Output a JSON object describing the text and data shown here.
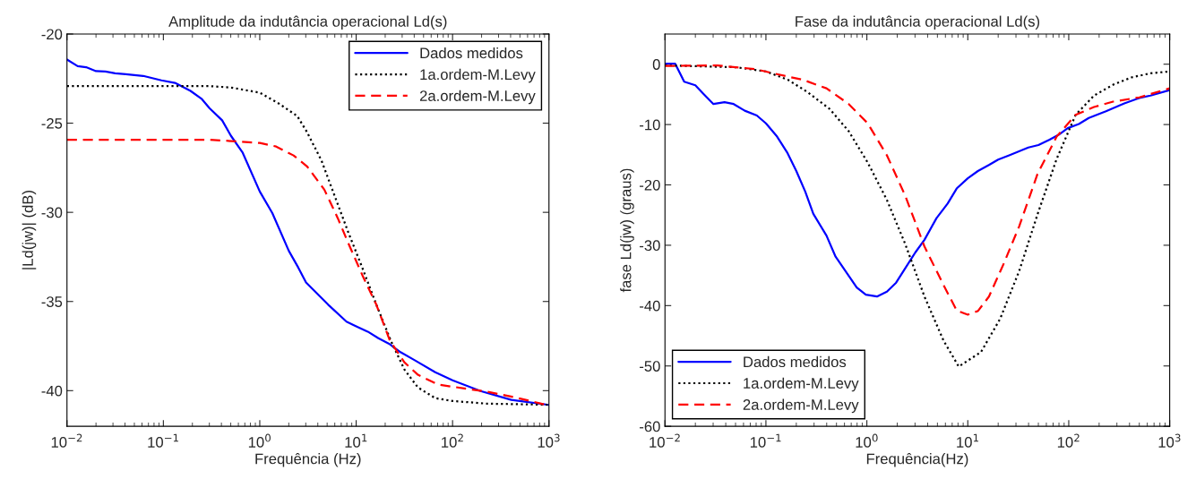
{
  "chart_data": [
    {
      "type": "line",
      "title": "Amplitude da indutância operacional Ld(s)",
      "xlabel": "Frequência (Hz)",
      "ylabel": "|Ld(jw)| (dB)",
      "log": "x",
      "xlim": [
        0.01,
        1000
      ],
      "xticks": [
        {
          "value": 0.01,
          "label": "10$^{−2}$"
        },
        {
          "value": 0.1,
          "label": "10$^{−1}$"
        },
        {
          "value": 1,
          "label": "10$^{0}$"
        },
        {
          "value": 10,
          "label": "10$^{1}$"
        },
        {
          "value": 100,
          "label": "10$^{2}$"
        },
        {
          "value": 1000,
          "label": "10$^{3}$"
        }
      ],
      "ylim": [
        -42,
        -20
      ],
      "yticks": [
        -20,
        -25,
        -30,
        -35,
        -40
      ],
      "grid": false,
      "legend": "top right",
      "series": [
        {
          "name": "Dados medidos",
          "color": "#0000ff",
          "line_style": "solid",
          "x": [
            0.01,
            0.0129,
            0.0158,
            0.02,
            0.0251,
            0.0316,
            0.0407,
            0.0617,
            0.0955,
            0.132,
            0.191,
            0.251,
            0.302,
            0.407,
            0.501,
            0.661,
            1,
            1.35,
            2.0,
            2.51,
            3.02,
            5.13,
            7.94,
            10,
            13.2,
            17.0,
            22.4,
            28.8,
            39.8,
            66.1,
            100,
            195,
            407,
            1000
          ],
          "values": [
            -21.43,
            -21.8,
            -21.86,
            -22.08,
            -22.1,
            -22.2,
            -22.25,
            -22.35,
            -22.6,
            -22.74,
            -23.19,
            -23.65,
            -24.17,
            -24.84,
            -25.7,
            -26.63,
            -28.83,
            -30.04,
            -32.16,
            -33.1,
            -33.93,
            -35.18,
            -36.13,
            -36.39,
            -36.69,
            -37.06,
            -37.4,
            -37.84,
            -38.27,
            -38.97,
            -39.42,
            -40.02,
            -40.52,
            -40.8
          ]
        },
        {
          "name": "1a.ordem-M.Levy",
          "color": "#000000",
          "line_style": "dotted",
          "x": [
            0.01,
            0.1,
            0.302,
            0.501,
            1,
            1.58,
            2.45,
            3.09,
            4.37,
            6.03,
            8.32,
            11.7,
            16.2,
            22.9,
            31.6,
            43.7,
            66.1,
            100,
            229,
            1000
          ],
          "values": [
            -22.92,
            -22.92,
            -22.92,
            -23.0,
            -23.29,
            -23.9,
            -24.6,
            -25.5,
            -27.1,
            -29.13,
            -31.15,
            -33.17,
            -35.18,
            -37.2,
            -38.81,
            -39.82,
            -40.42,
            -40.58,
            -40.73,
            -40.79
          ]
        },
        {
          "name": "2a.ordem-M.Levy",
          "color": "#ff0000",
          "line_style": "dashed",
          "x": [
            0.01,
            0.302,
            0.603,
            1,
            1.48,
            2.24,
            3.09,
            4.68,
            6.46,
            8.32,
            11.7,
            16.2,
            22.4,
            31.6,
            43.7,
            70.8,
            100,
            229,
            447,
            1000
          ],
          "values": [
            -25.93,
            -25.93,
            -26.03,
            -26.11,
            -26.31,
            -26.81,
            -27.42,
            -28.73,
            -30.34,
            -31.75,
            -33.57,
            -35.18,
            -37.2,
            -38.41,
            -39.11,
            -39.66,
            -39.78,
            -40.06,
            -40.38,
            -40.83
          ]
        }
      ]
    },
    {
      "type": "line",
      "title": "Fase da indutância operacional Ld(s)",
      "xlabel": "Frequência(Hz)",
      "ylabel": "fase Ld(jw) (graus)",
      "log": "x",
      "xlim": [
        0.01,
        1000
      ],
      "xticks": [
        {
          "value": 0.01,
          "label": "10$^{−2}$"
        },
        {
          "value": 0.1,
          "label": "10$^{−1}$"
        },
        {
          "value": 1,
          "label": "10$^{0}$"
        },
        {
          "value": 10,
          "label": "10$^{1}$"
        },
        {
          "value": 100,
          "label": "10$^{2}$"
        },
        {
          "value": 1000,
          "label": "10$^{3}$"
        }
      ],
      "ylim": [
        -60,
        5
      ],
      "yticks": [
        0,
        -10,
        -20,
        -30,
        -40,
        -50,
        -60
      ],
      "grid": false,
      "legend": "bottom left",
      "series": [
        {
          "name": "Dados medidos",
          "color": "#0000ff",
          "line_style": "solid",
          "x": [
            0.01,
            0.0126,
            0.0155,
            0.02,
            0.024,
            0.0302,
            0.0389,
            0.0479,
            0.0617,
            0.0813,
            0.1,
            0.129,
            0.162,
            0.2,
            0.245,
            0.295,
            0.398,
            0.49,
            0.646,
            0.794,
            0.977,
            1.26,
            1.58,
            1.95,
            2.4,
            3.02,
            3.72,
            4.9,
            6.31,
            7.76,
            10,
            12.6,
            16.2,
            20,
            25.7,
            39.8,
            50.1,
            64.6,
            79.4,
            97.7,
            126,
            158,
            234,
            355,
            501,
            646,
            1000
          ],
          "values": [
            0.1,
            0.1,
            -2.9,
            -3.5,
            -4.9,
            -6.6,
            -6.3,
            -6.6,
            -7.7,
            -8.5,
            -9.8,
            -12.0,
            -14.6,
            -17.7,
            -21.1,
            -24.8,
            -28.4,
            -31.9,
            -34.8,
            -37.0,
            -38.2,
            -38.5,
            -37.7,
            -36.2,
            -33.8,
            -31.2,
            -29.1,
            -25.5,
            -23.1,
            -20.6,
            -18.9,
            -17.7,
            -16.7,
            -15.8,
            -15.1,
            -13.8,
            -13.4,
            -12.5,
            -11.7,
            -10.6,
            -9.9,
            -8.9,
            -7.8,
            -6.5,
            -5.6,
            -5.2,
            -4.3
          ]
        },
        {
          "name": "1a.ordem-M.Levy",
          "color": "#000000",
          "line_style": "dotted",
          "x": [
            0.01,
            0.0501,
            0.1,
            0.166,
            0.257,
            0.427,
            0.661,
            1.02,
            1.58,
            2.4,
            3.72,
            5.75,
            8.13,
            13.5,
            20.9,
            32.4,
            49.0,
            75.9,
            117,
            178,
            275,
            417,
            646,
            1000
          ],
          "values": [
            -0.2,
            -0.5,
            -1.2,
            -2.6,
            -4.6,
            -7.4,
            -11.1,
            -16.3,
            -22.5,
            -29.8,
            -38.5,
            -45.8,
            -50.1,
            -47.7,
            -42.2,
            -34.2,
            -24.9,
            -15.7,
            -8.4,
            -5.2,
            -3.4,
            -2.2,
            -1.5,
            -1.2
          ]
        },
        {
          "name": "2a.ordem-M.Levy",
          "color": "#ff0000",
          "line_style": "dashed",
          "x": [
            0.01,
            0.0331,
            0.0501,
            0.0776,
            0.117,
            0.234,
            0.398,
            0.661,
            1.02,
            1.58,
            2.4,
            3.72,
            5.75,
            7.76,
            10,
            12.6,
            16.2,
            22.9,
            32.4,
            49.0,
            75.9,
            117,
            178,
            275,
            501,
            1000
          ],
          "values": [
            -0.3,
            -0.2,
            -0.5,
            -0.8,
            -1.5,
            -2.6,
            -4.0,
            -6.6,
            -9.8,
            -15.1,
            -21.8,
            -30.2,
            -36.6,
            -40.8,
            -41.5,
            -40.9,
            -38.5,
            -32.9,
            -26.8,
            -18.2,
            -12.0,
            -8.4,
            -7.1,
            -6.2,
            -5.5,
            -4.0
          ]
        }
      ]
    }
  ]
}
